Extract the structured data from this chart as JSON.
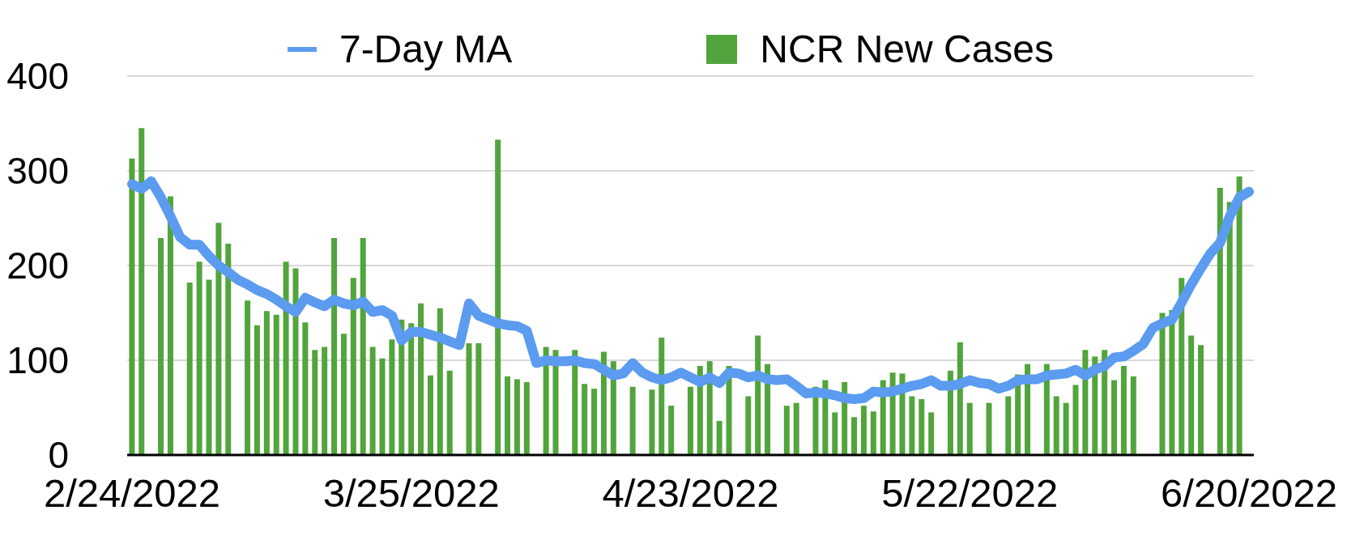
{
  "chart_data": {
    "type": "bar",
    "categories": [
      "2/24/2022",
      null,
      null,
      null,
      null,
      null,
      null,
      null,
      null,
      null,
      null,
      null,
      null,
      null,
      null,
      null,
      null,
      null,
      null,
      null,
      null,
      null,
      null,
      null,
      null,
      null,
      null,
      null,
      null,
      "3/25/2022",
      null,
      null,
      null,
      null,
      null,
      null,
      null,
      null,
      null,
      null,
      null,
      null,
      null,
      null,
      null,
      null,
      null,
      null,
      null,
      null,
      null,
      null,
      null,
      null,
      null,
      null,
      null,
      null,
      "4/23/2022",
      null,
      null,
      null,
      null,
      null,
      null,
      null,
      null,
      null,
      null,
      null,
      null,
      null,
      null,
      null,
      null,
      null,
      null,
      null,
      null,
      null,
      null,
      null,
      null,
      null,
      null,
      null,
      null,
      "5/22/2022",
      null,
      null,
      null,
      null,
      null,
      null,
      null,
      null,
      null,
      null,
      null,
      null,
      null,
      null,
      null,
      null,
      null,
      null,
      null,
      null,
      null,
      null,
      null,
      null,
      null,
      null,
      null,
      null,
      "6/20/2022"
    ],
    "series": [
      {
        "name": "7-Day MA",
        "type": "line",
        "color": "#5b9bf0",
        "values": [
          286,
          281,
          289,
          272,
          252,
          230,
          222,
          222,
          210,
          200,
          193,
          185,
          180,
          174,
          170,
          164,
          157,
          151,
          166,
          161,
          157,
          164,
          160,
          158,
          162,
          151,
          153,
          147,
          121,
          130,
          130,
          127,
          124,
          120,
          116,
          160,
          147,
          143,
          139,
          137,
          136,
          131,
          97,
          100,
          99,
          99,
          100,
          97,
          96,
          90,
          84,
          86,
          97,
          87,
          82,
          79,
          82,
          87,
          82,
          77,
          82,
          76,
          87,
          86,
          82,
          84,
          80,
          79,
          80,
          73,
          65,
          66,
          65,
          63,
          60,
          59,
          60,
          67,
          66,
          67,
          70,
          73,
          75,
          79,
          73,
          73,
          75,
          79,
          76,
          75,
          70,
          73,
          79,
          80,
          80,
          84,
          85,
          86,
          90,
          84,
          90,
          94,
          103,
          104,
          110,
          117,
          134,
          139,
          143,
          161,
          180,
          197,
          213,
          224,
          252,
          272,
          278
        ]
      },
      {
        "name": "NCR New Cases",
        "color": "#52a43c",
        "values": [
          313,
          345,
          null,
          229,
          273,
          null,
          182,
          204,
          185,
          245,
          223,
          null,
          163,
          137,
          152,
          148,
          204,
          197,
          140,
          111,
          114,
          229,
          128,
          187,
          229,
          114,
          102,
          122,
          143,
          139,
          160,
          84,
          155,
          89,
          null,
          118,
          118,
          null,
          333,
          83,
          80,
          77,
          null,
          114,
          111,
          null,
          111,
          75,
          70,
          109,
          99,
          null,
          72,
          null,
          69,
          124,
          52,
          null,
          72,
          94,
          99,
          36,
          94,
          null,
          62,
          126,
          96,
          null,
          52,
          55,
          null,
          72,
          79,
          45,
          77,
          40,
          52,
          46,
          79,
          87,
          86,
          62,
          59,
          45,
          null,
          89,
          119,
          55,
          null,
          55,
          null,
          62,
          85,
          96,
          null,
          96,
          62,
          55,
          74,
          111,
          104,
          111,
          79,
          94,
          83,
          null,
          null,
          150,
          153,
          187,
          126,
          116,
          null,
          282,
          267,
          294,
          null
        ]
      }
    ],
    "ylim": [
      0,
      400
    ],
    "yticks": [
      0,
      100,
      200,
      300,
      400
    ],
    "grid": "y",
    "legend": "top"
  }
}
